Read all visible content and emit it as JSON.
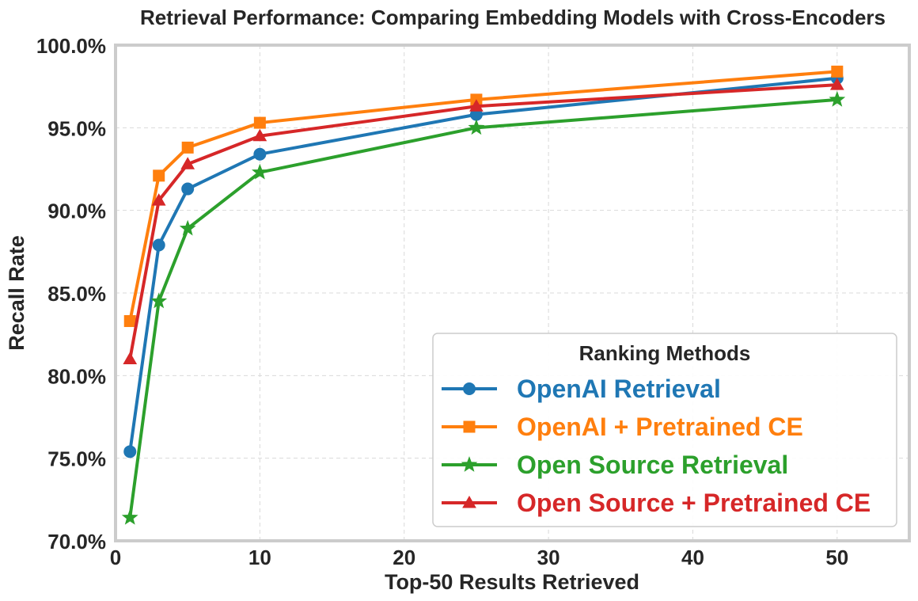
{
  "chart_data": {
    "type": "line",
    "title": "Retrieval Performance: Comparing Embedding Models with Cross-Encoders",
    "xlabel": "Top-50 Results Retrieved",
    "ylabel": "Recall Rate",
    "xlim": [
      0,
      55
    ],
    "ylim": [
      0.7,
      1.0
    ],
    "x_ticks": [
      0,
      10,
      20,
      30,
      40,
      50
    ],
    "x_tick_labels": [
      "0",
      "10",
      "20",
      "30",
      "40",
      "50"
    ],
    "y_ticks": [
      0.7,
      0.75,
      0.8,
      0.85,
      0.9,
      0.95,
      1.0
    ],
    "y_tick_labels": [
      "70.0%",
      "75.0%",
      "80.0%",
      "85.0%",
      "90.0%",
      "95.0%",
      "100.0%"
    ],
    "grid": true,
    "legend": {
      "title": "Ranking Methods",
      "placement": "lower-right"
    },
    "x": [
      1,
      3,
      5,
      10,
      25,
      50
    ],
    "series": [
      {
        "name": "OpenAI Retrieval",
        "color": "#1f77b4",
        "marker": "circle",
        "values": [
          0.754,
          0.879,
          0.913,
          0.934,
          0.958,
          0.98
        ]
      },
      {
        "name": "OpenAI + Pretrained CE",
        "color": "#ff7f0e",
        "marker": "square",
        "values": [
          0.833,
          0.921,
          0.938,
          0.953,
          0.967,
          0.984
        ]
      },
      {
        "name": "Open Source Retrieval",
        "color": "#2ca02c",
        "marker": "star",
        "values": [
          0.714,
          0.845,
          0.889,
          0.923,
          0.95,
          0.967
        ]
      },
      {
        "name": "Open Source + Pretrained CE",
        "color": "#d62728",
        "marker": "triangle",
        "values": [
          0.81,
          0.906,
          0.928,
          0.945,
          0.963,
          0.976
        ]
      }
    ]
  }
}
